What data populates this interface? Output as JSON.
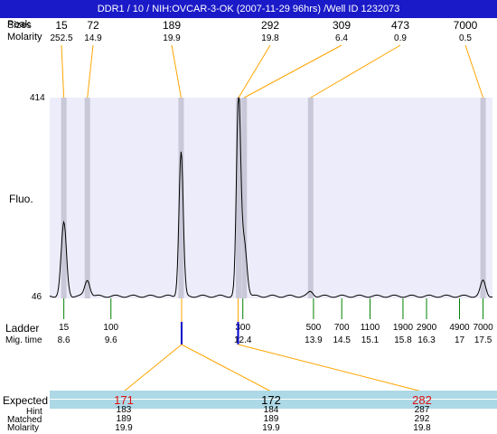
{
  "header": {
    "title": "DDR1 / 10 / NIH:OVCAR-3-OK (2007-11-29 96hrs) /Well ID 1232073",
    "row1_label": "Sizes",
    "row1_label_overlay": "Peak",
    "row2_label": "Molarity"
  },
  "chart_data": {
    "type": "line",
    "title": "DDR1 / 10 / NIH:OVCAR-3-OK (2007-11-29 96hrs) /Well ID 1232073",
    "ylabel": "Fluo.",
    "ylim": [
      46,
      414
    ],
    "y_ticks": [
      "414",
      "46"
    ],
    "x_range": [
      8.3,
      17.7
    ],
    "xlabel_rows": [
      "Ladder",
      "Mig. time"
    ],
    "peaks": [
      {
        "size": "15",
        "molarity": "252.5",
        "time": 8.6,
        "height": 184
      },
      {
        "size": "72",
        "molarity": "14.9",
        "time": 9.1,
        "height": 80
      },
      {
        "size": "189",
        "molarity": "19.9",
        "time": 11.09,
        "height": 315
      },
      {
        "size": "292",
        "molarity": "19.8",
        "time": 12.31,
        "height": 414
      },
      {
        "size": "309",
        "molarity": "6.4",
        "time": 12.43,
        "height": 150
      },
      {
        "size": "473",
        "molarity": "0.9",
        "time": 13.84,
        "height": 58
      },
      {
        "size": "7000",
        "molarity": "0.5",
        "time": 17.5,
        "height": 78
      }
    ],
    "baseline": 50,
    "ladder": [
      {
        "size": "15",
        "time": "8.6",
        "t": 8.6
      },
      {
        "size": "100",
        "time": "9.6",
        "t": 9.6
      },
      {
        "size": "300",
        "time": "12.4",
        "t": 12.4
      },
      {
        "size": "500",
        "time": "13.9",
        "t": 13.9
      },
      {
        "size": "700",
        "time": "14.5",
        "t": 14.5
      },
      {
        "size": "1100",
        "time": "15.1",
        "t": 15.1
      },
      {
        "size": "1900",
        "time": "15.8",
        "t": 15.8
      },
      {
        "size": "2900",
        "time": "16.3",
        "t": 16.3
      },
      {
        "size": "4900",
        "time": "17",
        "t": 17.0
      },
      {
        "size": "7000",
        "time": "17.5",
        "t": 17.5
      }
    ],
    "markers": [
      {
        "time": 11.1
      },
      {
        "time": 12.3
      }
    ],
    "colors": {
      "panel": "#ececfa",
      "band": "#c8c8d8",
      "trace": "#000000",
      "leader": "#ffa500",
      "ladder_tick": "#008000",
      "marker": "#0000cc"
    }
  },
  "table": {
    "labels": [
      "Expected",
      "Hint",
      "Matched",
      "Molarity"
    ],
    "columns": [
      {
        "expected": "171",
        "hint": "183",
        "matched": "189",
        "molarity": "19.9"
      },
      {
        "expected": "172",
        "hint": "184",
        "matched": "189",
        "molarity": "19.9"
      },
      {
        "expected": "282",
        "hint": "287",
        "matched": "292",
        "molarity": "19.8"
      }
    ],
    "colors": {
      "highlight": "#add8e6",
      "expected_mismatch": "#e01010"
    }
  }
}
